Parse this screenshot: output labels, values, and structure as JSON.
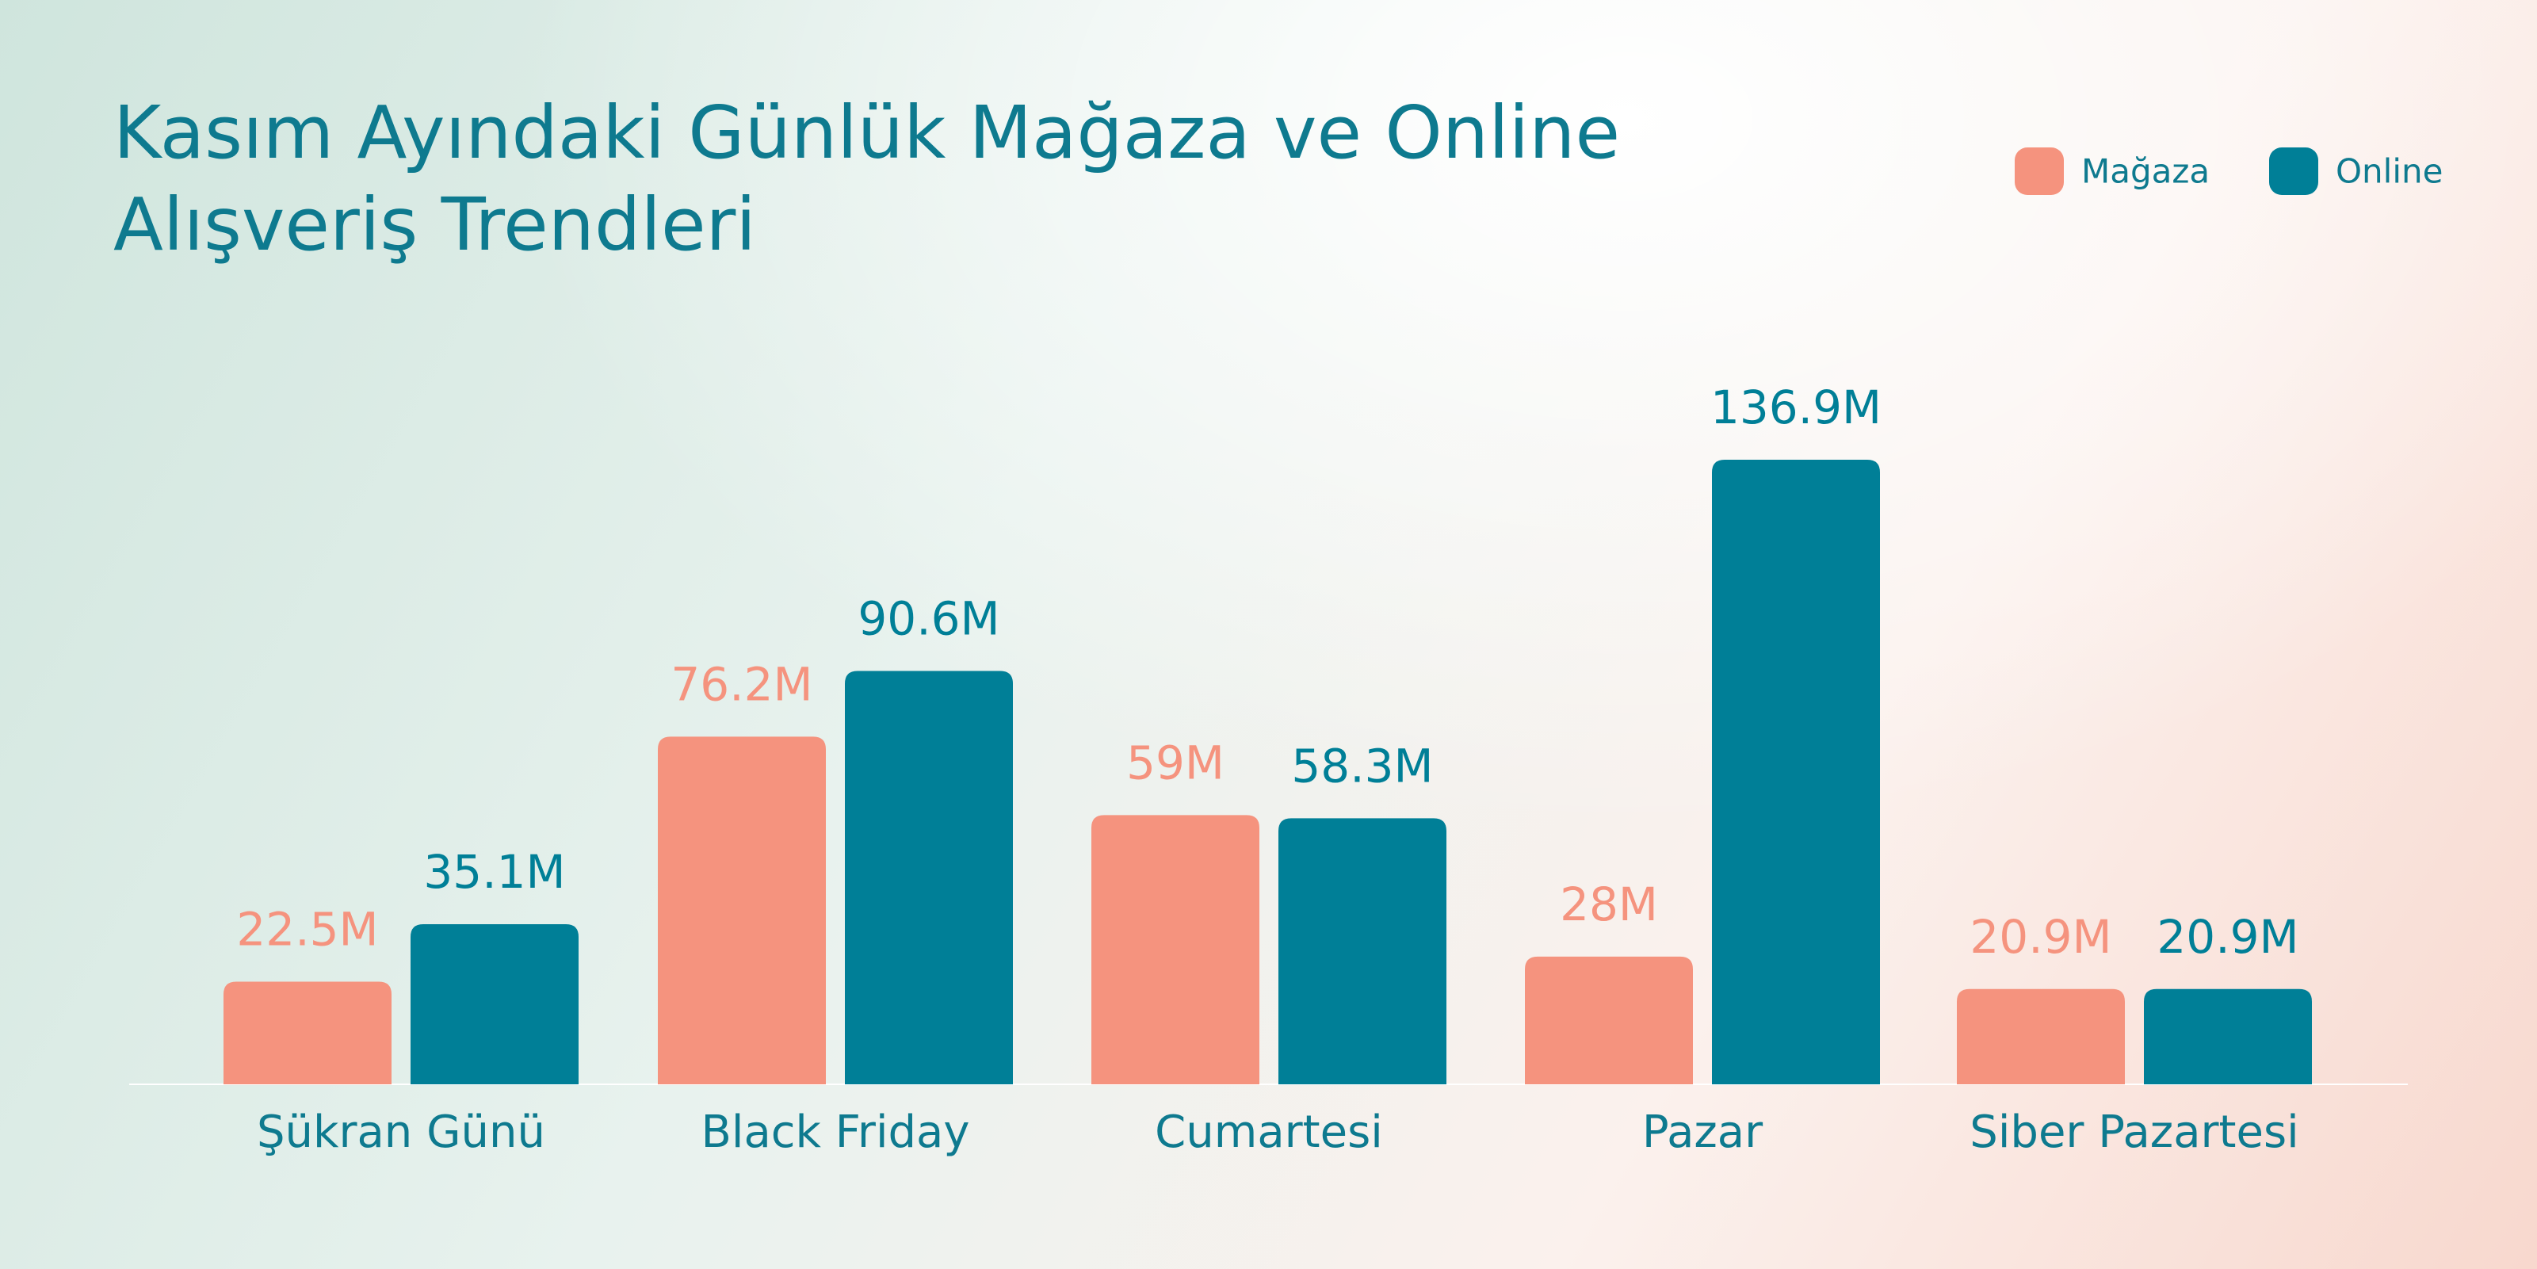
{
  "chart_data": {
    "type": "bar",
    "title": "Kasım Ayındaki Günlük Mağaza ve Online Alışveriş Trendleri",
    "categories": [
      "Şükran Günü",
      "Black Friday",
      "Cumartesi",
      "Pazar",
      "Siber Pazartesi"
    ],
    "series": [
      {
        "name": "Mağaza",
        "color": "#f5937e",
        "values": [
          22.5,
          76.2,
          59,
          28,
          20.9
        ],
        "value_labels": [
          "22.5M",
          "76.2M",
          "59M",
          "28M",
          "20.9M"
        ]
      },
      {
        "name": "Online",
        "color": "#007f97",
        "values": [
          35.1,
          90.6,
          58.3,
          136.9,
          20.9
        ],
        "value_labels": [
          "35.1M",
          "90.6M",
          "58.3M",
          "136.9M",
          "20.9M"
        ]
      }
    ],
    "legend": "top-right"
  }
}
